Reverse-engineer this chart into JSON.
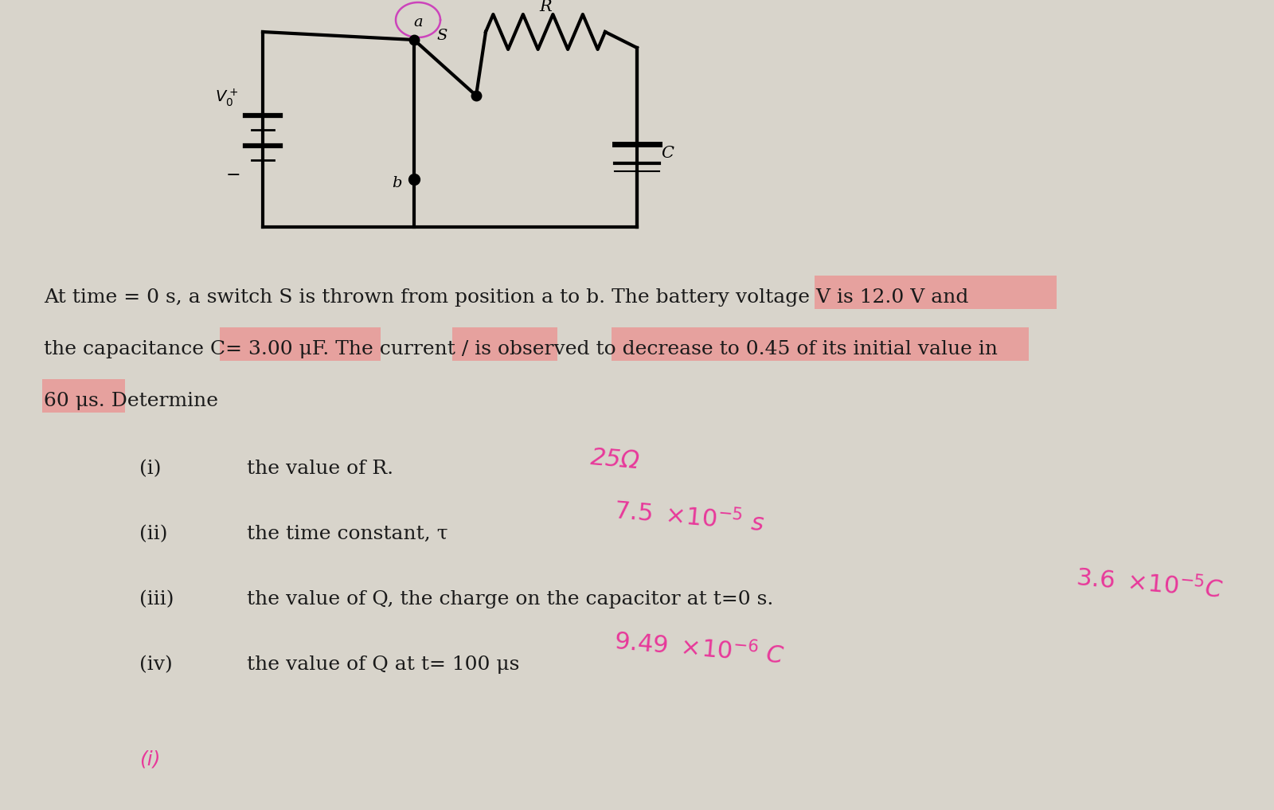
{
  "bg_color": "#d0ccbf",
  "bg_color_light": "#dedad2",
  "problem_text_line1": "At time = 0 s, a switch S is thrown from position a to b. The battery voltage V is 12.0 V and",
  "problem_text_line2": "the capacitance C= 3.00 μF. The current / is observed to decrease to 0.45 of its initial value in",
  "problem_text_line3": "60 μs. Determine",
  "items": [
    {
      "label": "(i)",
      "text": "the value of R."
    },
    {
      "label": "(ii)",
      "text": "the time constant, τ"
    },
    {
      "label": "(iii)",
      "text": "the value of Q, the charge on the capacitor at t=0 s."
    },
    {
      "label": "(iv)",
      "text": "the value of Q at t= 100 μs"
    }
  ],
  "footer_text": "(i)",
  "answer_color": "#e8389a",
  "highlight_color": "#f08080"
}
